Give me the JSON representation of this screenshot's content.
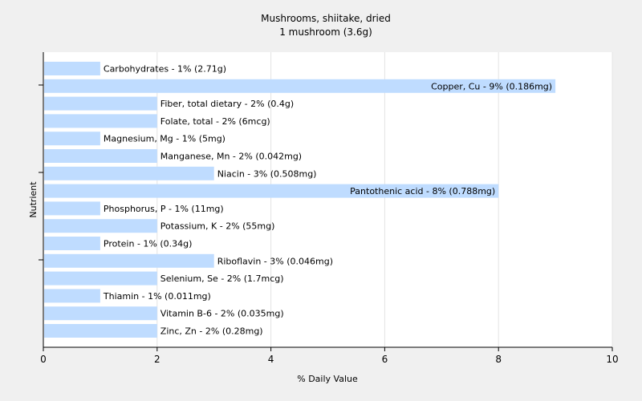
{
  "chart_data": {
    "type": "bar",
    "orientation": "horizontal",
    "title": "Mushrooms, shiitake, dried",
    "subtitle": "1 mushroom (3.6g)",
    "xlabel": "% Daily Value",
    "ylabel": "Nutrient",
    "xlim": [
      0,
      10
    ],
    "x_ticks": [
      "0",
      "2",
      "4",
      "6",
      "8",
      "10"
    ],
    "grid": true,
    "bar_color": "#bfdcff",
    "categories": [
      "Carbohydrates",
      "Copper, Cu",
      "Fiber, total dietary",
      "Folate, total",
      "Magnesium, Mg",
      "Manganese, Mn",
      "Niacin",
      "Pantothenic acid",
      "Phosphorus, P",
      "Potassium, K",
      "Protein",
      "Riboflavin",
      "Selenium, Se",
      "Thiamin",
      "Vitamin B-6",
      "Zinc, Zn"
    ],
    "values": [
      1,
      9,
      2,
      2,
      1,
      2,
      3,
      8,
      1,
      2,
      1,
      3,
      2,
      1,
      2,
      2
    ],
    "labels": [
      "Carbohydrates - 1% (2.71g)",
      "Copper, Cu - 9% (0.186mg)",
      "Fiber, total dietary - 2% (0.4g)",
      "Folate, total - 2% (6mcg)",
      "Magnesium, Mg - 1% (5mg)",
      "Manganese, Mn - 2% (0.042mg)",
      "Niacin - 3% (0.508mg)",
      "Pantothenic acid - 8% (0.788mg)",
      "Phosphorus, P - 1% (11mg)",
      "Potassium, K - 2% (55mg)",
      "Protein - 1% (0.34g)",
      "Riboflavin - 3% (0.046mg)",
      "Selenium, Se - 2% (1.7mcg)",
      "Thiamin - 1% (0.011mg)",
      "Vitamin B-6 - 2% (0.035mg)",
      "Zinc, Zn - 2% (0.28mg)"
    ],
    "inside_label_series_values": [
      9,
      8
    ]
  }
}
